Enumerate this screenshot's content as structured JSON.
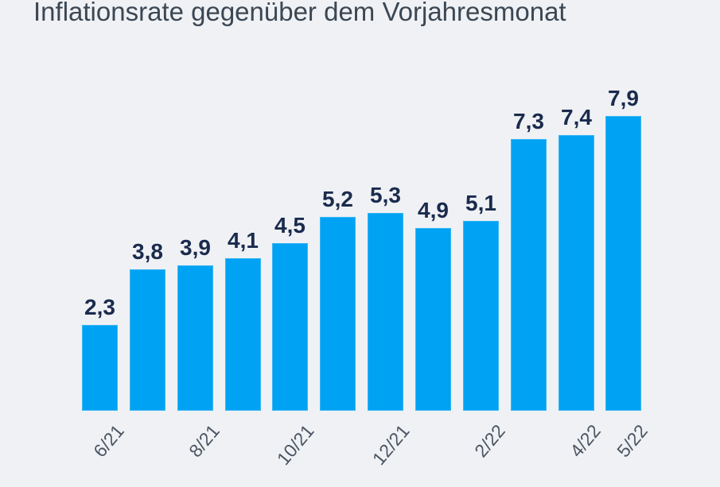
{
  "chart_data": {
    "type": "bar",
    "title": "Inflationsrate gegenüber dem Vorjahresmonat",
    "xlabel": "",
    "ylabel": "",
    "ylim": [
      0,
      8.2
    ],
    "grid": "off",
    "legend": "none",
    "value_format": "decimal-comma",
    "categories": [
      "6/21",
      "",
      "8/21",
      "",
      "10/21",
      "",
      "12/21",
      "",
      "2/22",
      "",
      "4/22",
      "5/22"
    ],
    "values": [
      2.3,
      3.8,
      3.9,
      4.1,
      4.5,
      5.2,
      5.3,
      4.9,
      5.1,
      7.3,
      7.4,
      7.9
    ],
    "bars": [
      {
        "tick": "6/21",
        "value": 2.3,
        "label": "2,3"
      },
      {
        "tick": "",
        "value": 3.8,
        "label": "3,8"
      },
      {
        "tick": "8/21",
        "value": 3.9,
        "label": "3,9"
      },
      {
        "tick": "",
        "value": 4.1,
        "label": "4,1"
      },
      {
        "tick": "10/21",
        "value": 4.5,
        "label": "4,5"
      },
      {
        "tick": "",
        "value": 5.2,
        "label": "5,2"
      },
      {
        "tick": "12/21",
        "value": 5.3,
        "label": "5,3"
      },
      {
        "tick": "",
        "value": 4.9,
        "label": "4,9"
      },
      {
        "tick": "2/22",
        "value": 5.1,
        "label": "5,1"
      },
      {
        "tick": "",
        "value": 7.3,
        "label": "7,3"
      },
      {
        "tick": "4/22",
        "value": 7.4,
        "label": "7,4"
      },
      {
        "tick": "5/22",
        "value": 7.9,
        "label": "7,9"
      }
    ],
    "colors": {
      "bar": "#00a2f3",
      "bar_edge": "#8ed4f8",
      "value_label": "#1a2b4e",
      "tick_label": "#4c5663",
      "title": "#3b4754",
      "background": "#eff1f4"
    }
  }
}
